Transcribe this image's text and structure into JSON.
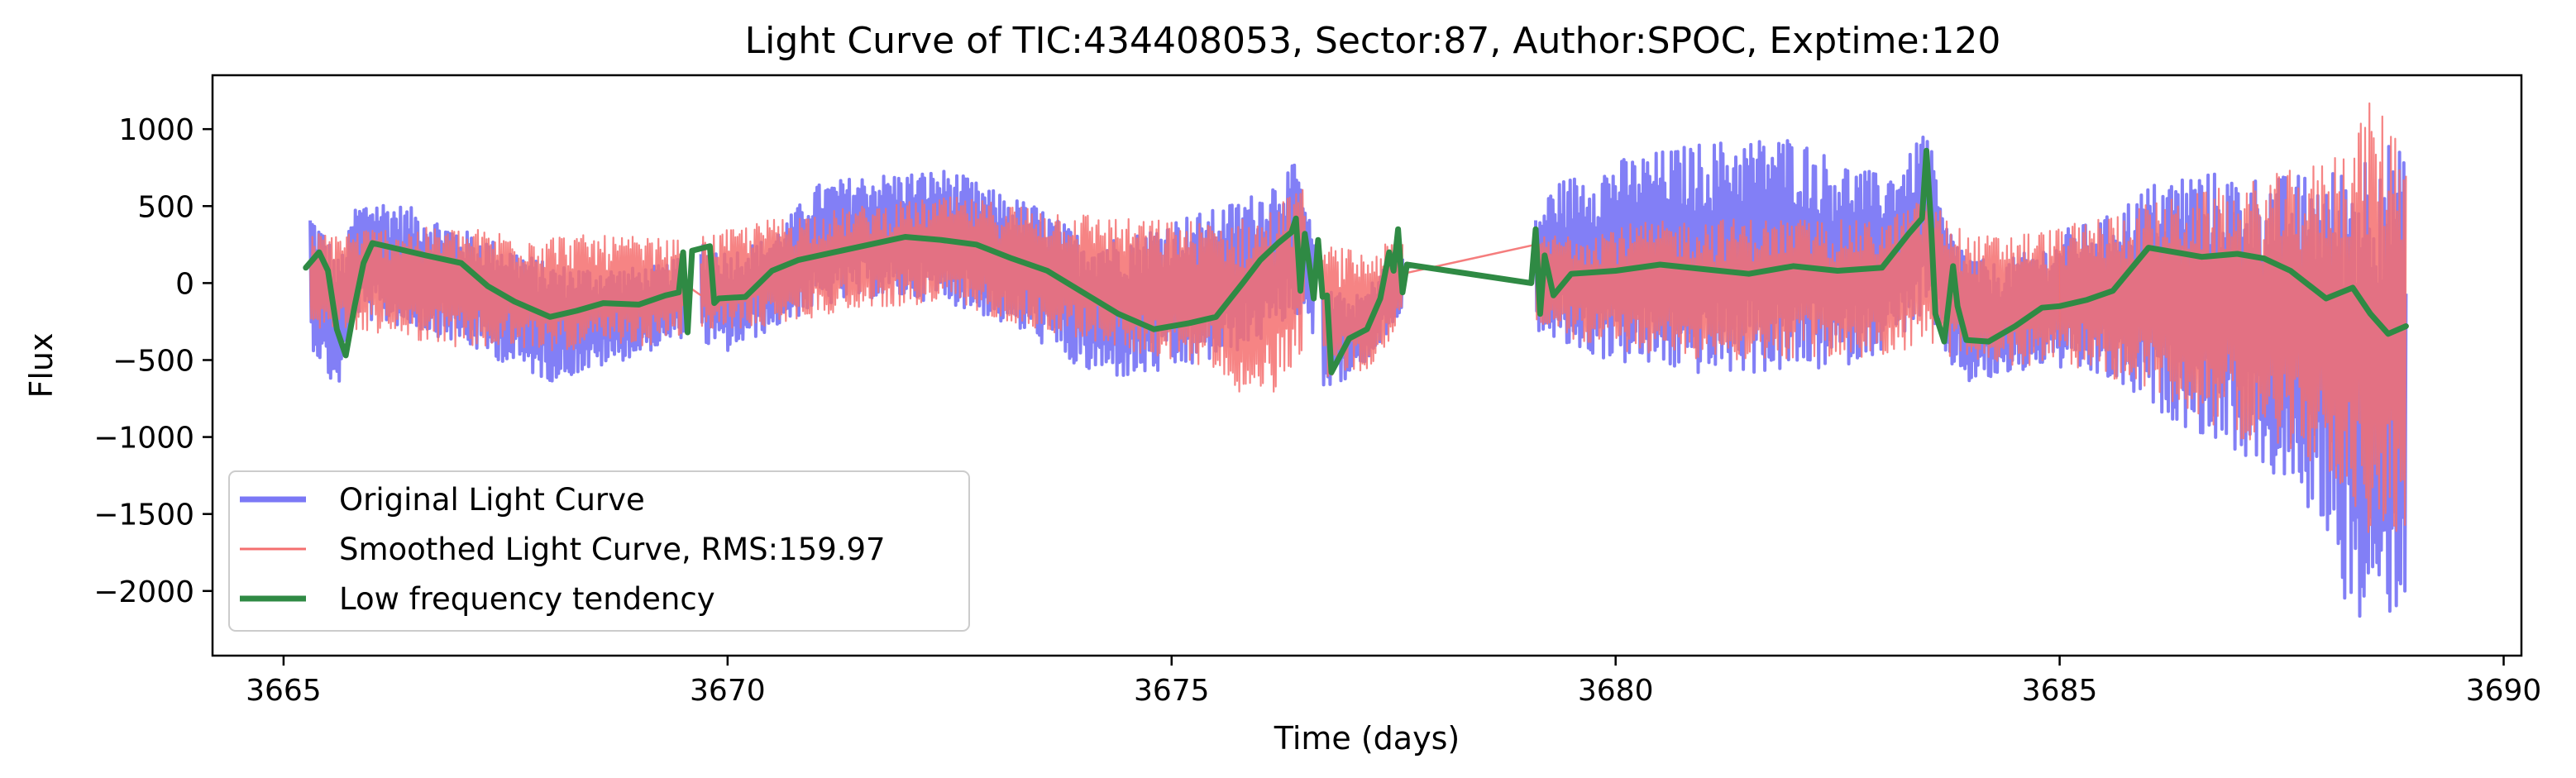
{
  "chart_data": {
    "type": "line",
    "title": "Light Curve of TIC:434408053, Sector:87, Author:SPOC, Exptime:120",
    "xlabel": "Time (days)",
    "ylabel": "Flux",
    "xlim": [
      3664.2,
      3690.2
    ],
    "ylim": [
      -2420,
      1350
    ],
    "xticks": [
      3665,
      3670,
      3675,
      3680,
      3685,
      3690
    ],
    "xtick_labels": [
      "3665",
      "3670",
      "3675",
      "3680",
      "3685",
      "3690"
    ],
    "yticks": [
      1000,
      500,
      0,
      -500,
      -1000,
      -1500,
      -2000
    ],
    "ytick_labels": [
      "1000",
      "500",
      "0",
      "−500",
      "−1000",
      "−1500",
      "−2000"
    ],
    "grid": false,
    "legend_position": "lower-left",
    "series": [
      {
        "name": "Original Light Curve",
        "color": "#7b78f6",
        "style": "noisy-band",
        "segments": [
          {
            "x": [
              3665.3,
              3665.5,
              3665.6,
              3665.7,
              3665.8,
              3666.0,
              3666.5,
              3667.0,
              3667.5,
              3668.0,
              3668.5,
              3669.0,
              3669.3,
              3669.5
            ],
            "upper": [
              480,
              300,
              150,
              250,
              500,
              560,
              480,
              350,
              250,
              120,
              100,
              100,
              120,
              180
            ],
            "lower": [
              -400,
              -620,
              -720,
              -500,
              -200,
              -250,
              -300,
              -400,
              -520,
              -640,
              -560,
              -470,
              -400,
              -350
            ]
          },
          {
            "x": [
              3669.7,
              3670.0,
              3670.5,
              3671.0,
              3671.5,
              3672.0,
              3672.5,
              3673.0,
              3673.5,
              3674.0,
              3674.5,
              3675.0,
              3675.5,
              3676.0,
              3676.4,
              3676.6
            ],
            "upper": [
              300,
              200,
              300,
              640,
              700,
              720,
              740,
              600,
              500,
              300,
              300,
              420,
              480,
              600,
              780,
              300
            ],
            "lower": [
              -400,
              -450,
              -300,
              -160,
              -100,
              -100,
              -130,
              -240,
              -380,
              -580,
              -620,
              -580,
              -500,
              -380,
              -200,
              -400
            ]
          },
          {
            "x": [
              3676.7,
              3677.0,
              3677.2,
              3677.4,
              3677.6
            ],
            "upper": [
              0,
              -100,
              -50,
              150,
              300
            ],
            "lower": [
              -680,
              -620,
              -530,
              -350,
              -220
            ]
          },
          {
            "x": [
              3679.1,
              3679.3,
              3680.0,
              3681.0,
              3682.0,
              3682.5,
              3683.0,
              3683.3,
              3683.5,
              3683.7,
              3684.0,
              3684.3,
              3684.7,
              3685.0
            ],
            "upper": [
              420,
              650,
              800,
              920,
              960,
              800,
              700,
              820,
              1040,
              400,
              180,
              120,
              220,
              260
            ],
            "lower": [
              -300,
              -400,
              -520,
              -600,
              -580,
              -560,
              -440,
              -300,
              -200,
              -500,
              -660,
              -620,
              -560,
              -480
            ]
          },
          {
            "x": [
              3685.0,
              3685.5,
              3686.0,
              3686.5,
              3687.0,
              3687.5,
              3688.0,
              3688.3,
              3688.6,
              3688.9
            ],
            "upper": [
              340,
              420,
              640,
              740,
              700,
              700,
              720,
              800,
              1000,
              820
            ],
            "lower": [
              -560,
              -620,
              -800,
              -960,
              -1100,
              -1300,
              -1600,
              -2250,
              -2220,
              -2090
            ]
          }
        ]
      },
      {
        "name": "Smoothed Light Curve, RMS:159.97",
        "color": "#f46f6f",
        "style": "noisy-band",
        "segments": [
          {
            "x": [
              3665.3,
              3666.0,
              3667.0,
              3668.0,
              3669.0,
              3669.5
            ],
            "upper": [
              320,
              360,
              360,
              320,
              300,
              280
            ],
            "lower": [
              -300,
              -320,
              -420,
              -440,
              -420,
              -350
            ]
          },
          {
            "x": [
              3669.7,
              3670.5,
              3671.5,
              3672.5,
              3673.5,
              3674.5,
              3675.5,
              3676.0,
              3676.5
            ],
            "upper": [
              300,
              420,
              500,
              560,
              500,
              420,
              400,
              440,
              650
            ],
            "lower": [
              -320,
              -280,
              -160,
              -140,
              -300,
              -440,
              -560,
              -840,
              -420
            ]
          },
          {
            "x": [
              3676.7,
              3677.2,
              3677.6
            ],
            "upper": [
              250,
              200,
              300
            ],
            "lower": [
              -620,
              -560,
              -300
            ]
          },
          {
            "x": [
              3679.1,
              3680.0,
              3681.0,
              3682.0,
              3683.0,
              3683.5,
              3684.0,
              3685.0
            ],
            "upper": [
              300,
              380,
              420,
              420,
              400,
              560,
              300,
              360
            ],
            "lower": [
              -300,
              -440,
              -500,
              -500,
              -480,
              -400,
              -560,
              -520
            ]
          },
          {
            "x": [
              3685.0,
              3686.0,
              3687.0,
              3688.0,
              3688.5,
              3688.9
            ],
            "upper": [
              360,
              520,
              640,
              800,
              1180,
              1000
            ],
            "lower": [
              -520,
              -700,
              -1000,
              -1200,
              -1700,
              -1580
            ]
          }
        ],
        "connectors": [
          {
            "x": [
              3669.5,
              3669.7
            ],
            "y": [
              0,
              -80
            ]
          },
          {
            "x": [
              3677.6,
              3679.1
            ],
            "y": [
              60,
              250
            ]
          }
        ]
      },
      {
        "name": "Low frequency tendency",
        "color": "#2f8a44",
        "style": "smooth-line",
        "x": [
          3665.25,
          3665.4,
          3665.5,
          3665.6,
          3665.7,
          3665.8,
          3665.9,
          3666.0,
          3666.3,
          3666.6,
          3667.0,
          3667.3,
          3667.6,
          3668.0,
          3668.3,
          3668.6,
          3669.0,
          3669.3,
          3669.45,
          3669.5,
          3669.55,
          3669.6,
          3669.8,
          3669.85,
          3669.9,
          3670.2,
          3670.5,
          3670.8,
          3671.2,
          3671.6,
          3672.0,
          3672.4,
          3672.8,
          3673.2,
          3673.6,
          3674.0,
          3674.4,
          3674.8,
          3675.2,
          3675.5,
          3675.8,
          3676.0,
          3676.2,
          3676.35,
          3676.4,
          3676.45,
          3676.5,
          3676.55,
          3676.6,
          3676.65,
          3676.7,
          3676.75,
          3676.8,
          3677.0,
          3677.2,
          3677.35,
          3677.45,
          3677.5,
          3677.55,
          3677.6,
          3677.65,
          3679.05,
          3679.1,
          3679.15,
          3679.2,
          3679.3,
          3679.5,
          3680.0,
          3680.5,
          3681.0,
          3681.5,
          3682.0,
          3682.5,
          3683.0,
          3683.3,
          3683.45,
          3683.5,
          3683.55,
          3683.6,
          3683.7,
          3683.8,
          3683.85,
          3683.95,
          3684.2,
          3684.5,
          3684.8,
          3685.0,
          3685.3,
          3685.6,
          3686.0,
          3686.3,
          3686.6,
          3687.0,
          3687.3,
          3687.6,
          3688.0,
          3688.3,
          3688.5,
          3688.7,
          3688.9
        ],
        "y": [
          100,
          200,
          80,
          -300,
          -470,
          -150,
          130,
          260,
          220,
          180,
          130,
          -20,
          -120,
          -220,
          -180,
          -130,
          -140,
          -80,
          -60,
          200,
          -320,
          210,
          240,
          -130,
          -100,
          -90,
          80,
          150,
          200,
          250,
          300,
          280,
          250,
          160,
          80,
          -60,
          -200,
          -300,
          -260,
          -220,
          0,
          150,
          260,
          330,
          420,
          -50,
          320,
          120,
          -100,
          280,
          -90,
          -80,
          -580,
          -360,
          -300,
          -100,
          200,
          80,
          350,
          -60,
          120,
          0,
          350,
          -200,
          180,
          -80,
          60,
          80,
          120,
          90,
          60,
          110,
          80,
          100,
          320,
          420,
          860,
          400,
          -200,
          -380,
          110,
          -150,
          -370,
          -380,
          -280,
          -160,
          -150,
          -110,
          -50,
          230,
          200,
          170,
          190,
          160,
          80,
          -100,
          -30,
          -200,
          -330,
          -280
        ]
      }
    ]
  },
  "legend": {
    "items": [
      {
        "label": "Original Light Curve",
        "color": "#7b78f6"
      },
      {
        "label": "Smoothed Light Curve, RMS:159.97",
        "color": "#f46f6f"
      },
      {
        "label": "Low frequency tendency",
        "color": "#2f8a44"
      }
    ]
  }
}
